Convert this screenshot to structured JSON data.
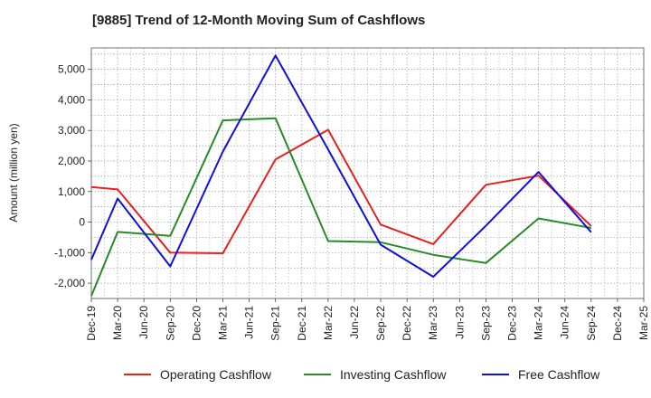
{
  "chart_data": {
    "type": "line",
    "title": "[9885]  Trend of 12-Month Moving Sum of Cashflows",
    "ylabel": "Amount (million yen)",
    "xlabel": "",
    "x": [
      "Dec-19",
      "Mar-20",
      "Jun-20",
      "Sep-20",
      "Dec-20",
      "Mar-21",
      "Jun-21",
      "Sep-21",
      "Dec-21",
      "Mar-22",
      "Jun-22",
      "Sep-22",
      "Dec-22",
      "Mar-23",
      "Jun-23",
      "Sep-23",
      "Dec-23",
      "Mar-24",
      "Jun-24",
      "Sep-24",
      "Dec-24",
      "Mar-25"
    ],
    "ylim": [
      -2500,
      5700
    ],
    "yticks": [
      -2000,
      -1000,
      0,
      1000,
      2000,
      3000,
      4000,
      5000
    ],
    "ytick_labels": [
      "-2,000",
      "-1,000",
      "0",
      "1,000",
      "2,000",
      "3,000",
      "4,000",
      "5,000"
    ],
    "grid": true,
    "legend_position": "bottom",
    "series": [
      {
        "name": "Operating Cashflow",
        "color": "#e8201c",
        "points": [
          {
            "x": "Dec-19",
            "y": 1150
          },
          {
            "x": "Mar-20",
            "y": 1070
          },
          {
            "x": "Sep-20",
            "y": -1000
          },
          {
            "x": "Mar-21",
            "y": -1020
          },
          {
            "x": "Sep-21",
            "y": 2050
          },
          {
            "x": "Mar-22",
            "y": 3020
          },
          {
            "x": "Sep-22",
            "y": -80
          },
          {
            "x": "Mar-23",
            "y": -720
          },
          {
            "x": "Sep-23",
            "y": 1220
          },
          {
            "x": "Mar-24",
            "y": 1520
          },
          {
            "x": "Sep-24",
            "y": -130
          }
        ]
      },
      {
        "name": "Investing Cashflow",
        "color": "#2a8a2a",
        "points": [
          {
            "x": "Dec-19",
            "y": -2420
          },
          {
            "x": "Mar-20",
            "y": -320
          },
          {
            "x": "Sep-20",
            "y": -450
          },
          {
            "x": "Mar-21",
            "y": 3330
          },
          {
            "x": "Sep-21",
            "y": 3400
          },
          {
            "x": "Mar-22",
            "y": -620
          },
          {
            "x": "Sep-22",
            "y": -660
          },
          {
            "x": "Mar-23",
            "y": -1070
          },
          {
            "x": "Sep-23",
            "y": -1340
          },
          {
            "x": "Mar-24",
            "y": 120
          },
          {
            "x": "Sep-24",
            "y": -190
          }
        ]
      },
      {
        "name": "Free Cashflow",
        "color": "#1010d8",
        "points": [
          {
            "x": "Dec-19",
            "y": -1230
          },
          {
            "x": "Mar-20",
            "y": 770
          },
          {
            "x": "Sep-20",
            "y": -1450
          },
          {
            "x": "Mar-21",
            "y": 2310
          },
          {
            "x": "Sep-21",
            "y": 5450
          },
          {
            "x": "Mar-22",
            "y": 2380
          },
          {
            "x": "Sep-22",
            "y": -740
          },
          {
            "x": "Mar-23",
            "y": -1790
          },
          {
            "x": "Sep-23",
            "y": -120
          },
          {
            "x": "Mar-24",
            "y": 1640
          },
          {
            "x": "Sep-24",
            "y": -330
          }
        ]
      }
    ]
  }
}
